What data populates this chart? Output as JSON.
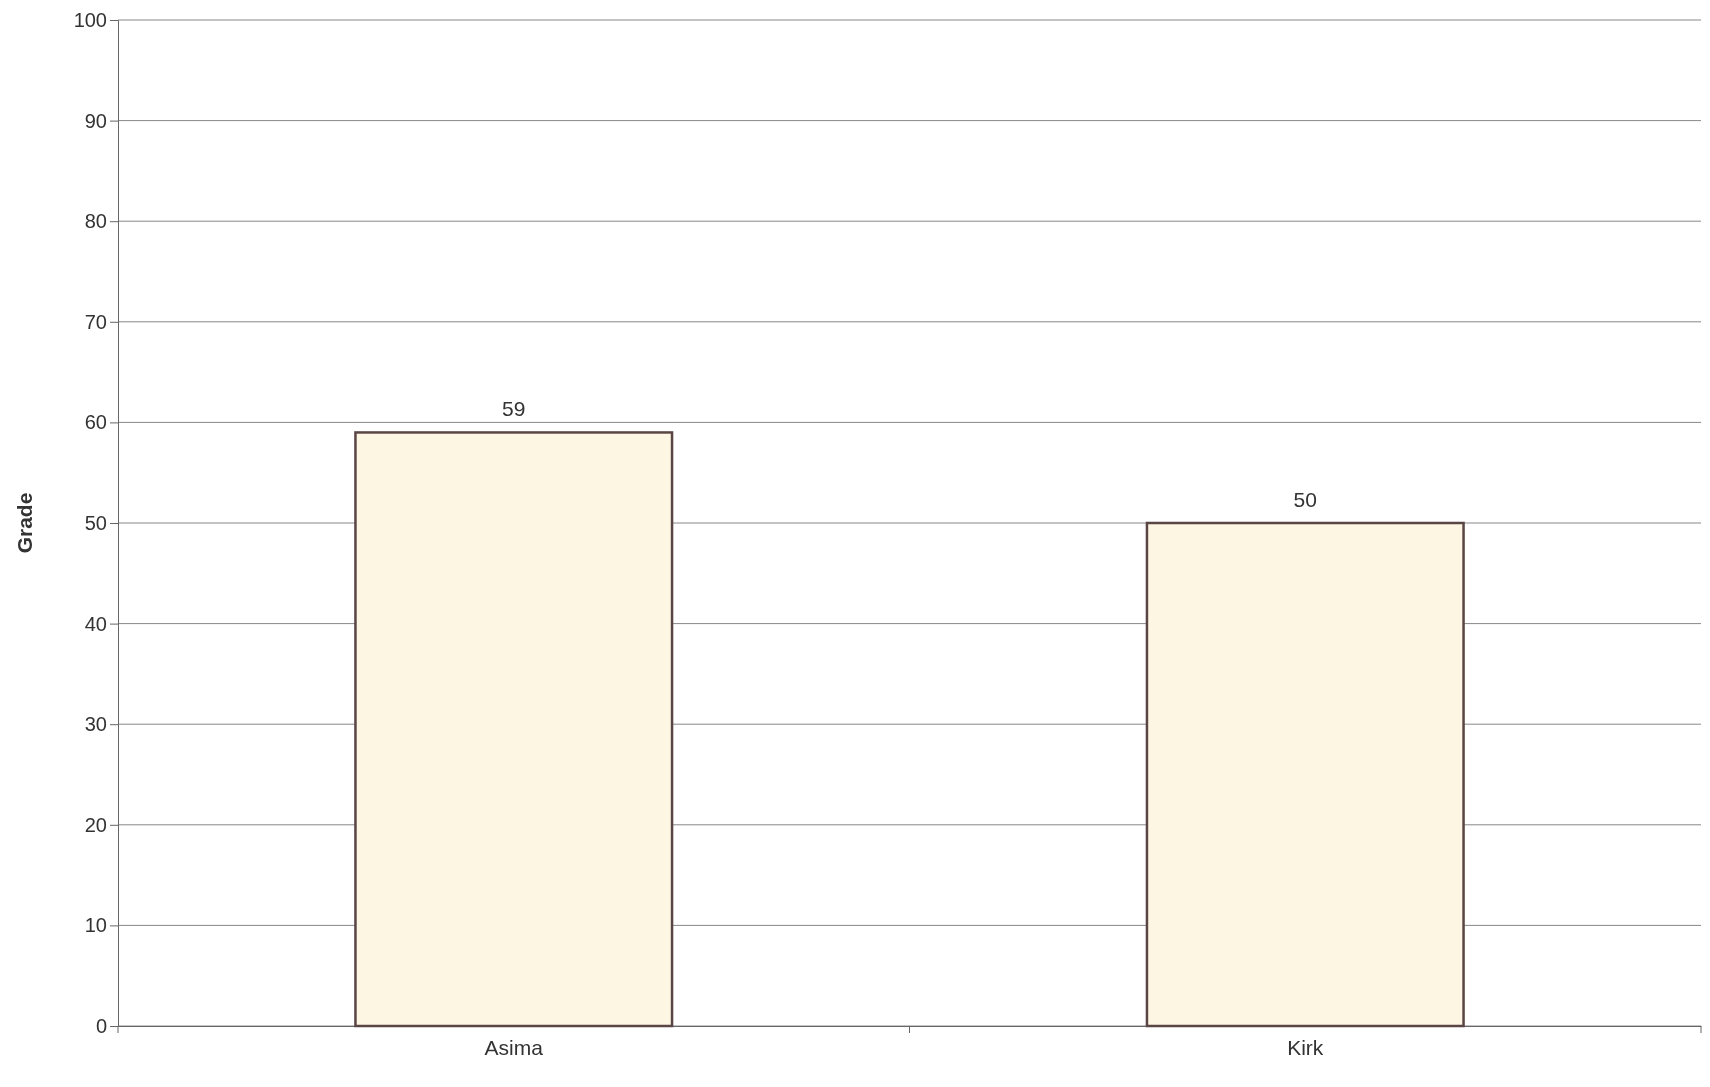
{
  "chart_data": {
    "type": "bar",
    "ylabel": "Grade",
    "categories": [
      "Asima",
      "Kirk"
    ],
    "values": [
      59,
      50
    ],
    "color": "#fcf6e2",
    "ylim": [
      0,
      100
    ],
    "yticks": [
      0,
      10,
      20,
      30,
      40,
      50,
      60,
      70,
      80,
      90,
      100
    ],
    "grid": "y",
    "data_labels": true
  }
}
